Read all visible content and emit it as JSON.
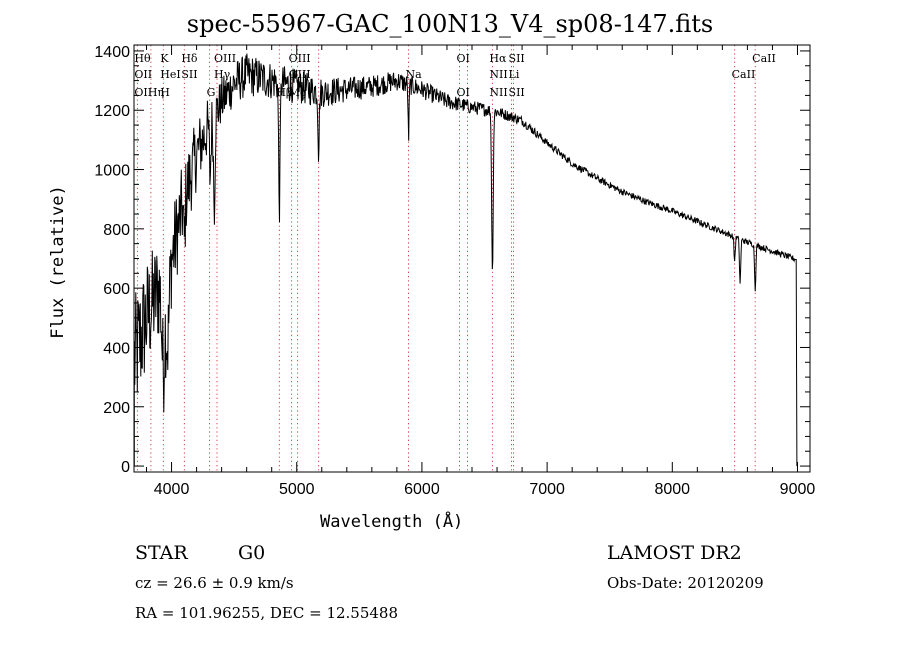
{
  "title": "spec-55967-GAC_100N13_V4_sp08-147.fits",
  "info": {
    "class": "STAR",
    "subclass": "G0",
    "survey": "LAMOST DR2",
    "cz": "cz = 26.6 ± 0.9 km/s",
    "obs_date": "Obs-Date: 20120209",
    "coords": "RA = 101.96255, DEC =  12.55488"
  },
  "chart_data": {
    "type": "line",
    "xlabel": "Wavelength (Å)",
    "ylabel": "Flux (relative)",
    "xlim": [
      3700,
      9100
    ],
    "ylim": [
      -20,
      1420
    ],
    "xticks": [
      4000,
      5000,
      6000,
      7000,
      8000,
      9000
    ],
    "yticks": [
      0,
      200,
      400,
      600,
      800,
      1000,
      1200,
      1400
    ],
    "continuum": [
      [
        3700,
        350
      ],
      [
        3800,
        500
      ],
      [
        3900,
        600
      ],
      [
        4000,
        700
      ],
      [
        4100,
        900
      ],
      [
        4200,
        1050
      ],
      [
        4300,
        1150
      ],
      [
        4400,
        1230
      ],
      [
        4500,
        1290
      ],
      [
        4600,
        1320
      ],
      [
        4800,
        1300
      ],
      [
        5000,
        1280
      ],
      [
        5200,
        1260
      ],
      [
        5400,
        1270
      ],
      [
        5600,
        1280
      ],
      [
        5800,
        1300
      ],
      [
        6000,
        1270
      ],
      [
        6200,
        1230
      ],
      [
        6400,
        1210
      ],
      [
        6600,
        1195
      ],
      [
        6800,
        1165
      ],
      [
        7000,
        1090
      ],
      [
        7200,
        1020
      ],
      [
        7400,
        970
      ],
      [
        7600,
        925
      ],
      [
        7800,
        890
      ],
      [
        8000,
        860
      ],
      [
        8200,
        825
      ],
      [
        8400,
        790
      ],
      [
        8600,
        755
      ],
      [
        8800,
        725
      ],
      [
        9000,
        695
      ]
    ],
    "absorption": [
      {
        "center": 3934,
        "depth": 300,
        "width": 12
      },
      {
        "center": 3969,
        "depth": 250,
        "width": 12
      },
      {
        "center": 4102,
        "depth": 150,
        "width": 6
      },
      {
        "center": 4308,
        "depth": 180,
        "width": 6
      },
      {
        "center": 4341,
        "depth": 300,
        "width": 6
      },
      {
        "center": 4861,
        "depth": 420,
        "width": 6
      },
      {
        "center": 5175,
        "depth": 200,
        "width": 5
      },
      {
        "center": 5893,
        "depth": 180,
        "width": 4
      },
      {
        "center": 6563,
        "depth": 550,
        "width": 6
      },
      {
        "center": 8498,
        "depth": 80,
        "width": 5
      },
      {
        "center": 8542,
        "depth": 150,
        "width": 5
      },
      {
        "center": 8662,
        "depth": 150,
        "width": 5
      }
    ],
    "noise_amplitude": [
      [
        3700,
        220
      ],
      [
        4000,
        160
      ],
      [
        4400,
        80
      ],
      [
        5500,
        40
      ],
      [
        6500,
        22
      ],
      [
        7000,
        12
      ],
      [
        9000,
        10
      ]
    ],
    "line_markers": [
      {
        "labels": [
          "Hθ",
          "OII",
          "OII"
        ],
        "wl": 3727
      },
      {
        "labels": [
          "",
          "",
          "Hη"
        ],
        "wl": 3835
      },
      {
        "labels": [
          "K",
          "HeI",
          "H"
        ],
        "wl": 3934
      },
      {
        "labels": [
          "Hδ",
          "SII",
          ""
        ],
        "wl": 4102
      },
      {
        "labels": [
          "",
          "",
          "G"
        ],
        "wl": 4304
      },
      {
        "labels": [
          "OIII",
          "Hγ",
          ""
        ],
        "wl": 4363
      },
      {
        "labels": [
          "",
          "",
          "Hβ"
        ],
        "wl": 4861
      },
      {
        "labels": [
          "OIII",
          "OIII",
          "Mg"
        ],
        "wl": 4959
      },
      {
        "labels": [
          "",
          "",
          ""
        ],
        "wl": 5007
      },
      {
        "labels": [
          "",
          "",
          ""
        ],
        "wl": 5175
      },
      {
        "labels": [
          "",
          "Na",
          ""
        ],
        "wl": 5893
      },
      {
        "labels": [
          "OI",
          "",
          "OI"
        ],
        "wl": 6300
      },
      {
        "labels": [
          "",
          "",
          ""
        ],
        "wl": 6364
      },
      {
        "labels": [
          "Hα",
          "NII",
          "NII"
        ],
        "wl": 6563
      },
      {
        "labels": [
          "SII",
          "Li",
          "SII"
        ],
        "wl": 6716
      },
      {
        "labels": [
          "",
          "",
          ""
        ],
        "wl": 6731
      },
      {
        "labels": [
          "",
          "CaII",
          ""
        ],
        "wl": 8498
      },
      {
        "labels": [
          "CaII",
          "",
          ""
        ],
        "wl": 8662
      }
    ]
  }
}
